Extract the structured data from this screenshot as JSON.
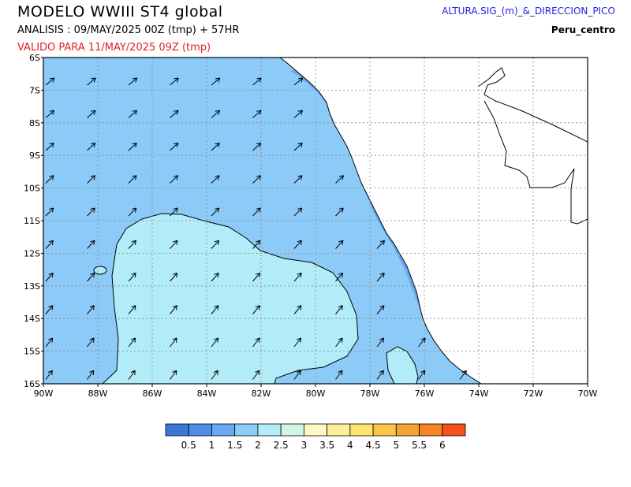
{
  "header": {
    "title": "MODELO WWIII ST4 global",
    "analysis": "ANALISIS : 09/MAY/2025 00Z  (tmp) + 57HR",
    "valid": "VALIDO PARA  11/MAY/2025 09Z  (tmp)",
    "variable": "ALTURA.SIG_(m)_&_DIRECCION_PICO",
    "region": "Peru_centro"
  },
  "axes": {
    "lat_labels": [
      "6S",
      "7S",
      "8S",
      "9S",
      "10S",
      "11S",
      "12S",
      "13S",
      "14S",
      "15S",
      "16S"
    ],
    "lon_labels": [
      "90W",
      "88W",
      "86W",
      "84W",
      "82W",
      "80W",
      "78W",
      "76W",
      "74W",
      "72W",
      "70W"
    ]
  },
  "colorbar": {
    "colors": [
      "#3a78d8",
      "#4f8ee8",
      "#6aa8f2",
      "#8ccbf8",
      "#b2ecf8",
      "#d2f4e2",
      "#fdf8c6",
      "#fdee9a",
      "#fde46c",
      "#f9c648",
      "#f5a334",
      "#f58424",
      "#f2501c"
    ],
    "labels": [
      "0.5",
      "1",
      "1.5",
      "2",
      "2.5",
      "3",
      "3.5",
      "4",
      "4.5",
      "5",
      "5.5",
      "6"
    ]
  },
  "map_colors": {
    "sea_1_5_2": "#8ccbf8",
    "sea_2_2_5": "#b2ecf8",
    "sea_1_1_5": "#6aa8f2",
    "land": "#ffffff"
  }
}
